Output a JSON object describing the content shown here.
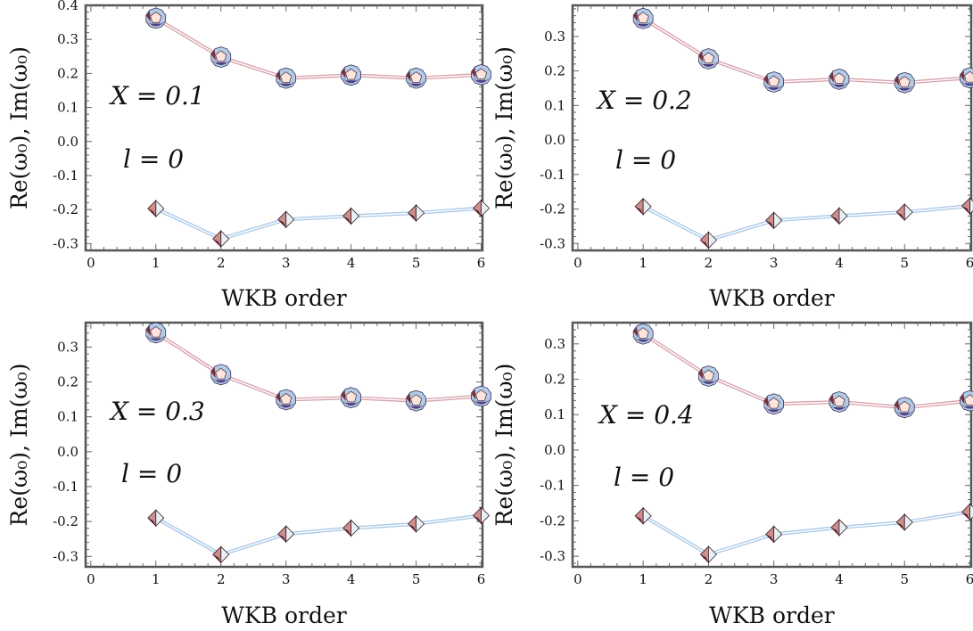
{
  "chart_data": [
    {
      "type": "line",
      "xlabel": "WKB order",
      "ylabel": "Re(ω₀), Im(ω₀)",
      "xlim": [
        0,
        6
      ],
      "ylim": [
        -0.32,
        0.4
      ],
      "xticks": [
        0,
        1,
        2,
        3,
        4,
        5,
        6
      ],
      "yticks": [
        -0.3,
        -0.2,
        -0.1,
        0.0,
        0.1,
        0.2,
        0.3,
        0.4
      ],
      "ytick_labels": [
        "-0.3",
        "-0.2",
        "-0.1",
        "0.0",
        "0.1",
        "0.2",
        "0.3",
        "0.4"
      ],
      "annotations": [
        "X = 0.1",
        "l = 0"
      ],
      "series": [
        {
          "x": [
            1,
            2,
            3,
            4,
            5,
            6
          ],
          "values": [
            0.362,
            0.248,
            0.186,
            0.195,
            0.186,
            0.196
          ],
          "marker": "pentagon"
        },
        {
          "x": [
            1,
            2,
            3,
            4,
            5,
            6
          ],
          "values": [
            -0.197,
            -0.286,
            -0.229,
            -0.219,
            -0.21,
            -0.196
          ],
          "marker": "diamond"
        }
      ],
      "grid": false
    },
    {
      "type": "line",
      "xlabel": "WKB order",
      "ylabel": "Re(ω₀), Im(ω₀)",
      "xlim": [
        0,
        6
      ],
      "ylim": [
        -0.32,
        0.39
      ],
      "xticks": [
        0,
        1,
        2,
        3,
        4,
        5,
        6
      ],
      "yticks": [
        -0.3,
        -0.2,
        -0.1,
        0.0,
        0.1,
        0.2,
        0.3
      ],
      "ytick_labels": [
        "-0.3",
        "-0.2",
        "-0.1",
        "0.0",
        "0.1",
        "0.2",
        "0.3"
      ],
      "annotations": [
        "X = 0.2",
        "l = 0"
      ],
      "series": [
        {
          "x": [
            1,
            2,
            3,
            4,
            5,
            6
          ],
          "values": [
            0.352,
            0.235,
            0.168,
            0.176,
            0.166,
            0.18
          ],
          "marker": "pentagon"
        },
        {
          "x": [
            1,
            2,
            3,
            4,
            5,
            6
          ],
          "values": [
            -0.193,
            -0.29,
            -0.233,
            -0.22,
            -0.209,
            -0.191
          ],
          "marker": "diamond"
        }
      ],
      "grid": false
    },
    {
      "type": "line",
      "xlabel": "WKB order",
      "ylabel": "Re(ω₀), Im(ω₀)",
      "xlim": [
        0,
        6
      ],
      "ylim": [
        -0.33,
        0.37
      ],
      "xticks": [
        0,
        1,
        2,
        3,
        4,
        5,
        6
      ],
      "yticks": [
        -0.3,
        -0.2,
        -0.1,
        0.0,
        0.1,
        0.2,
        0.3
      ],
      "ytick_labels": [
        "-0.3",
        "-0.2",
        "-0.1",
        "0.0",
        "0.1",
        "0.2",
        "0.3"
      ],
      "annotations": [
        "X = 0.3",
        "l = 0"
      ],
      "series": [
        {
          "x": [
            1,
            2,
            3,
            4,
            5,
            6
          ],
          "values": [
            0.341,
            0.221,
            0.149,
            0.155,
            0.146,
            0.159
          ],
          "marker": "pentagon"
        },
        {
          "x": [
            1,
            2,
            3,
            4,
            5,
            6
          ],
          "values": [
            -0.19,
            -0.295,
            -0.236,
            -0.219,
            -0.207,
            -0.183
          ],
          "marker": "diamond"
        }
      ],
      "grid": false
    },
    {
      "type": "line",
      "xlabel": "WKB order",
      "ylabel": "Re(ω₀), Im(ω₀)",
      "xlim": [
        0,
        6
      ],
      "ylim": [
        -0.33,
        0.36
      ],
      "xticks": [
        0,
        1,
        2,
        3,
        4,
        5,
        6
      ],
      "yticks": [
        -0.3,
        -0.2,
        -0.1,
        0.0,
        0.1,
        0.2,
        0.3
      ],
      "ytick_labels": [
        "-0.3",
        "-0.2",
        "-0.1",
        "0.0",
        "0.1",
        "0.2",
        "0.3"
      ],
      "annotations": [
        "X = 0.4",
        "l = 0"
      ],
      "series": [
        {
          "x": [
            1,
            2,
            3,
            4,
            5,
            6
          ],
          "values": [
            0.328,
            0.209,
            0.13,
            0.136,
            0.12,
            0.139
          ],
          "marker": "pentagon"
        },
        {
          "x": [
            1,
            2,
            3,
            4,
            5,
            6
          ],
          "values": [
            -0.186,
            -0.295,
            -0.238,
            -0.219,
            -0.204,
            -0.175
          ],
          "marker": "diamond"
        }
      ],
      "grid": false
    }
  ],
  "colors": {
    "re_line": "#d7a0aa",
    "im_line": "#a8c8e6",
    "pentagon_face": "#fde4dd",
    "pentagon_rim_dark": "#4f3f7d",
    "pentagon_rim_blue": "#b2cce8",
    "pentagon_rim_red": "#7a2f3c",
    "diamond_face_left": "#cc8f8c",
    "diamond_face_right": "#e6f1f6",
    "diamond_dark": "#5d2130"
  }
}
